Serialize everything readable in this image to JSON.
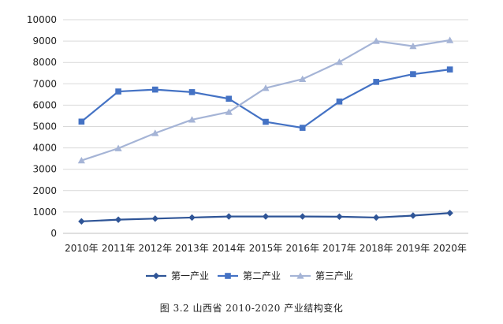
{
  "chart_data": {
    "type": "line",
    "title": "",
    "xlabel": "",
    "ylabel": "",
    "categories": [
      "2010年",
      "2011年",
      "2012年",
      "2013年",
      "2014年",
      "2015年",
      "2016年",
      "2017年",
      "2018年",
      "2019年",
      "2020年"
    ],
    "ylim": [
      0,
      10000
    ],
    "yticks": [
      0,
      1000,
      2000,
      3000,
      4000,
      5000,
      6000,
      7000,
      8000,
      9000,
      10000
    ],
    "grid": true,
    "legend_position": "bottom",
    "series": [
      {
        "name": "第一产业",
        "color": "#2f5597",
        "marker": "diamond",
        "values": [
          560,
          640,
          690,
          740,
          790,
          790,
          790,
          780,
          740,
          830,
          950
        ]
      },
      {
        "name": "第二产业",
        "color": "#4472c4",
        "marker": "square",
        "values": [
          5230,
          6640,
          6730,
          6610,
          6300,
          5220,
          4940,
          6170,
          7090,
          7450,
          7670
        ]
      },
      {
        "name": "第三产业",
        "color": "#a5b4d6",
        "marker": "triangle",
        "values": [
          3410,
          3980,
          4690,
          5320,
          5680,
          6800,
          7220,
          8020,
          9000,
          8760,
          9040
        ]
      }
    ]
  },
  "caption": "图 3.2 山西省 2010-2020 产业结构变化"
}
